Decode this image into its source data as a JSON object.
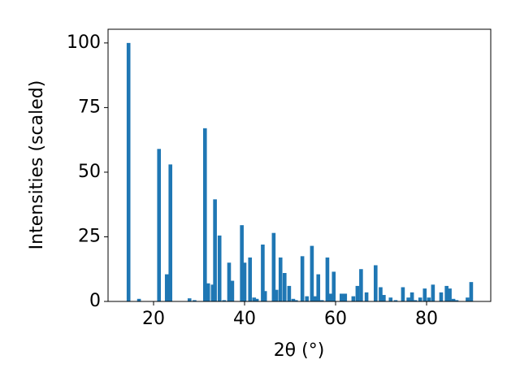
{
  "chart_data": {
    "type": "bar",
    "xlabel": "2θ (°)",
    "ylabel": "Intensities (scaled)",
    "x": [
      14.5,
      16.8,
      21.2,
      22.9,
      23.7,
      27.9,
      29.0,
      31.3,
      32.0,
      33.0,
      33.5,
      34.5,
      35.5,
      36.6,
      37.3,
      39.4,
      40.0,
      41.2,
      42.1,
      42.7,
      44.0,
      44.5,
      46.4,
      47.0,
      47.9,
      48.8,
      49.8,
      50.7,
      51.3,
      52.7,
      53.7,
      54.8,
      55.4,
      56.2,
      57.0,
      58.2,
      58.9,
      59.6,
      61.3,
      62.1,
      63.9,
      64.8,
      65.6,
      66.8,
      68.8,
      69.9,
      70.6,
      72.1,
      73.2,
      74.8,
      76.0,
      76.8,
      77.5,
      78.6,
      79.6,
      80.5,
      81.4,
      83.2,
      84.4,
      85.1,
      85.9,
      86.6,
      89.0,
      89.8
    ],
    "values": [
      100,
      1,
      59,
      10.5,
      53,
      1.2,
      0.5,
      67,
      7,
      6.5,
      39.5,
      25.5,
      0.5,
      15,
      8,
      29.5,
      15,
      17,
      1.5,
      1,
      22,
      4,
      26.5,
      4.5,
      17,
      11,
      6,
      1,
      0.5,
      17.5,
      2,
      21.5,
      2,
      10.5,
      0.5,
      17,
      3,
      11.5,
      3,
      3,
      2,
      6,
      12.5,
      3.5,
      14,
      5.5,
      2.5,
      1.5,
      0.5,
      5.5,
      1.5,
      3.5,
      0.5,
      1.5,
      5,
      1.5,
      6.5,
      3.5,
      6,
      5,
      1,
      0.5,
      1.5,
      7.5
    ],
    "color": "#1f77b4",
    "xlim": [
      10,
      94.1
    ],
    "xticks": [
      20,
      40,
      60,
      80
    ],
    "ylim": [
      0,
      105.3
    ],
    "yticks": [
      0,
      25,
      50,
      75,
      100
    ]
  }
}
